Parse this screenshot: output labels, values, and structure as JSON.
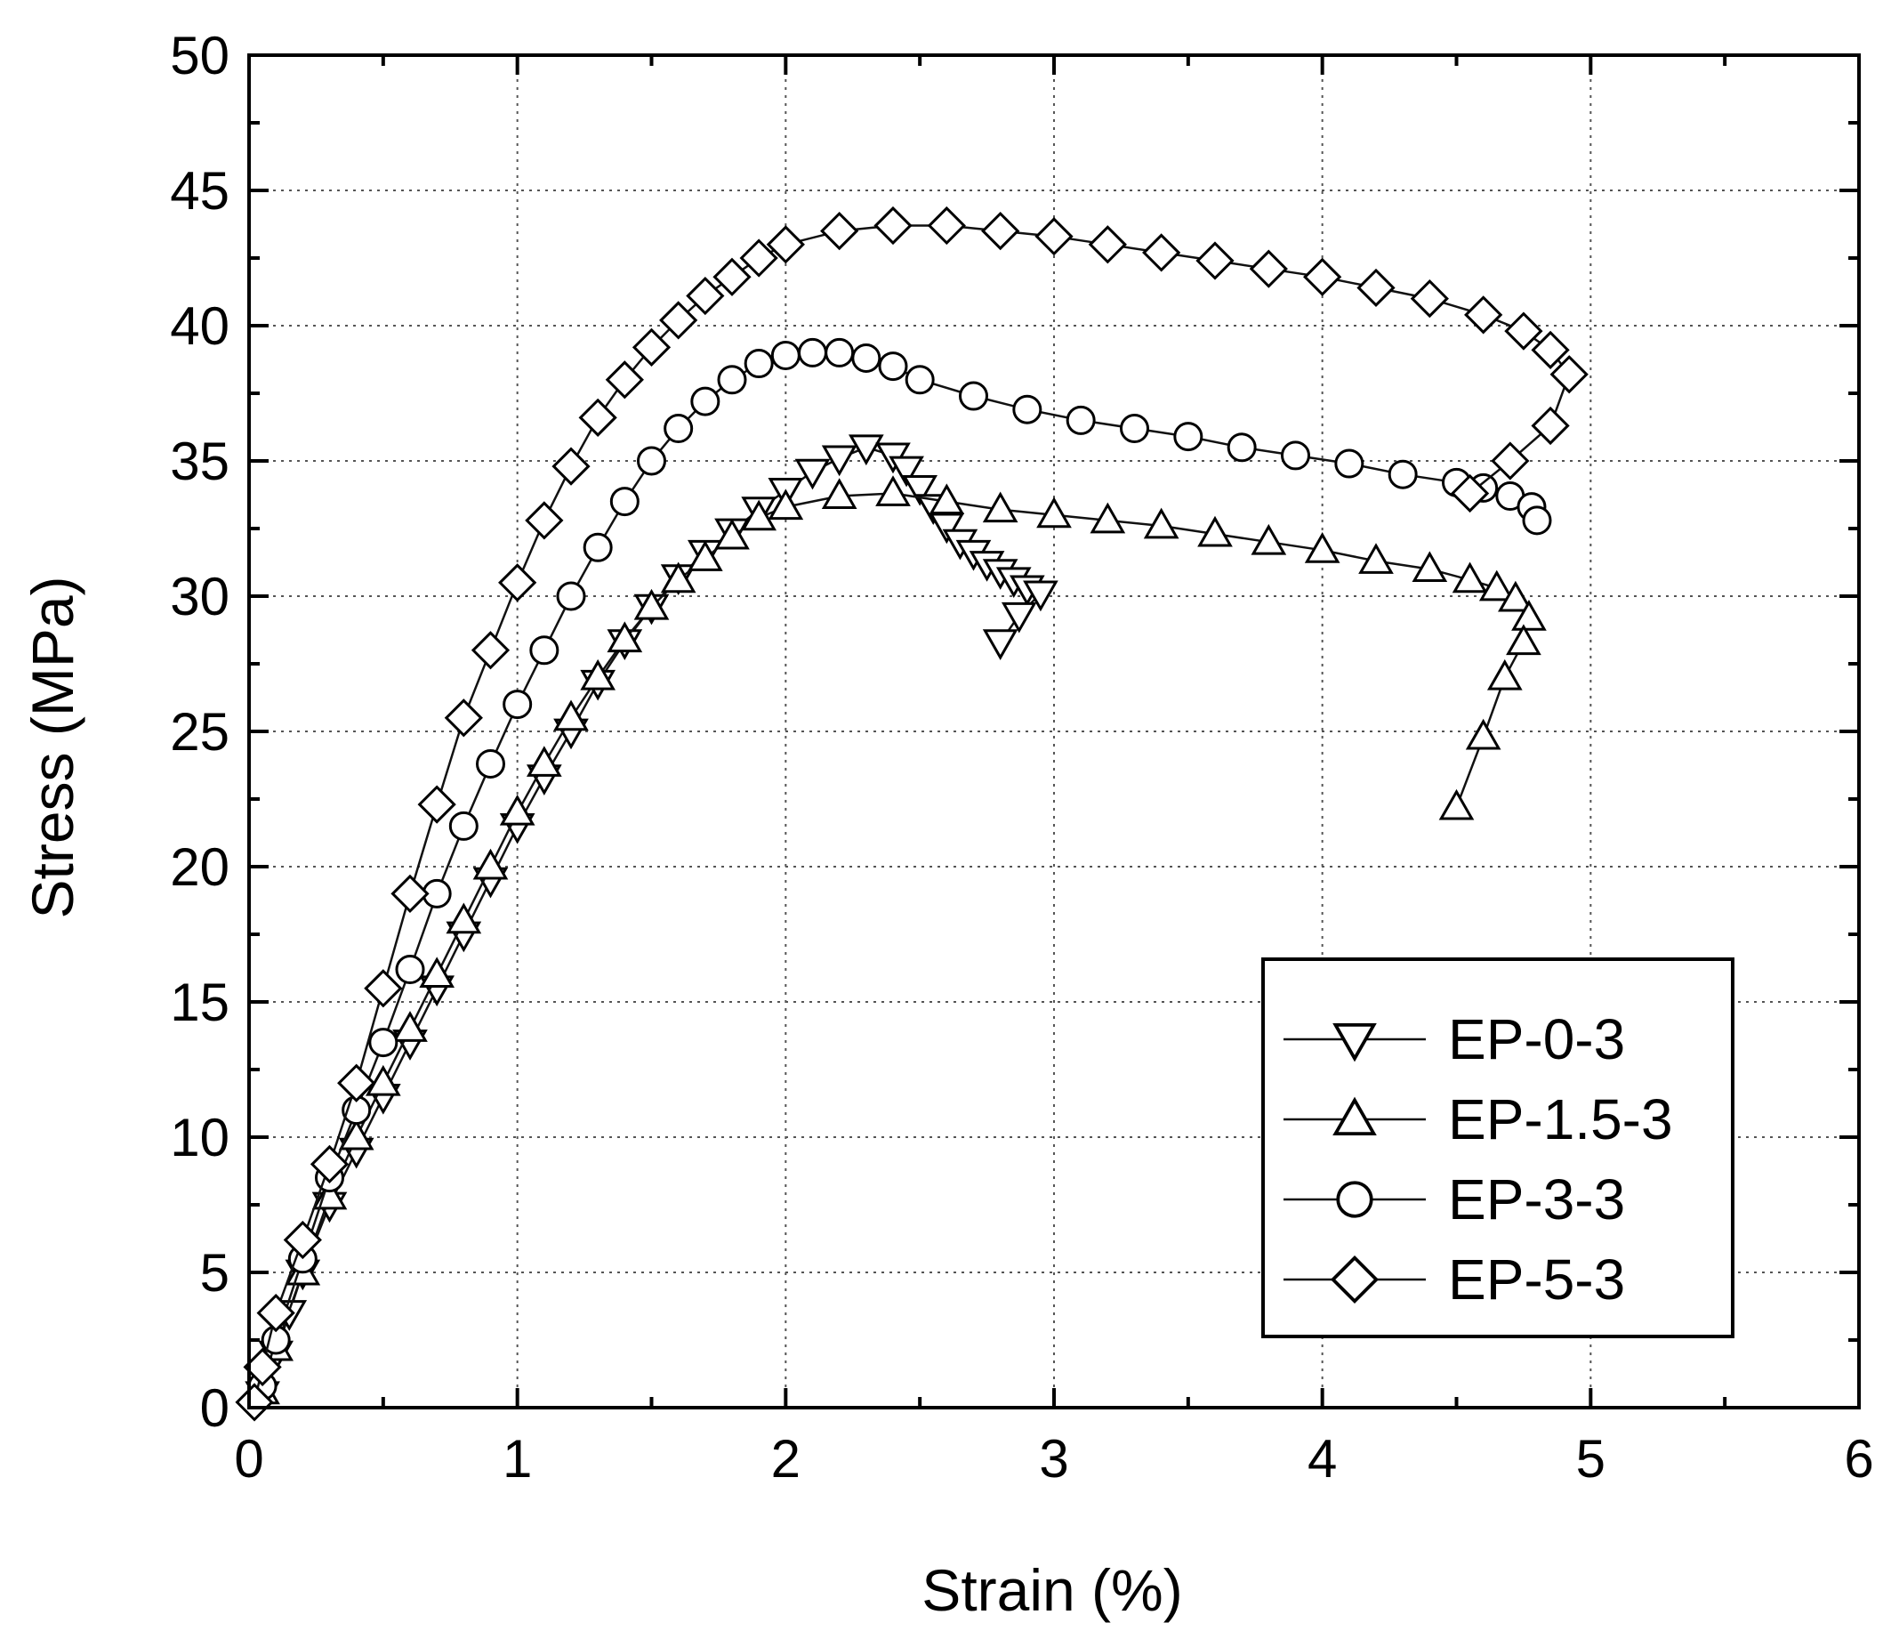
{
  "chart_data": {
    "type": "scatter",
    "title": "",
    "xlabel": "Strain (%)",
    "ylabel": "Stress (MPa)",
    "xlim": [
      0,
      6
    ],
    "ylim": [
      0,
      50
    ],
    "xticks": [
      0,
      1,
      2,
      3,
      4,
      5,
      6
    ],
    "yticks": [
      0,
      5,
      10,
      15,
      20,
      25,
      30,
      35,
      40,
      45,
      50
    ],
    "grid": true,
    "legend_position": "bottom-right",
    "series": [
      {
        "name": "EP-0-3",
        "marker": "triangle-down",
        "points": [
          [
            0.05,
            0.5
          ],
          [
            0.1,
            2.0
          ],
          [
            0.15,
            3.5
          ],
          [
            0.2,
            5.0
          ],
          [
            0.3,
            7.5
          ],
          [
            0.4,
            9.5
          ],
          [
            0.5,
            11.5
          ],
          [
            0.6,
            13.5
          ],
          [
            0.7,
            15.5
          ],
          [
            0.8,
            17.5
          ],
          [
            0.9,
            19.5
          ],
          [
            1.0,
            21.5
          ],
          [
            1.1,
            23.3
          ],
          [
            1.2,
            25.0
          ],
          [
            1.3,
            26.8
          ],
          [
            1.4,
            28.3
          ],
          [
            1.5,
            29.6
          ],
          [
            1.6,
            30.7
          ],
          [
            1.7,
            31.6
          ],
          [
            1.8,
            32.4
          ],
          [
            1.9,
            33.2
          ],
          [
            2.0,
            33.9
          ],
          [
            2.1,
            34.6
          ],
          [
            2.2,
            35.1
          ],
          [
            2.3,
            35.5
          ],
          [
            2.4,
            35.2
          ],
          [
            2.45,
            34.7
          ],
          [
            2.5,
            34.0
          ],
          [
            2.55,
            33.3
          ],
          [
            2.6,
            32.6
          ],
          [
            2.65,
            32.0
          ],
          [
            2.7,
            31.6
          ],
          [
            2.75,
            31.2
          ],
          [
            2.8,
            30.9
          ],
          [
            2.85,
            30.6
          ],
          [
            2.9,
            30.3
          ],
          [
            2.95,
            30.1
          ],
          [
            2.87,
            29.3
          ],
          [
            2.8,
            28.3
          ]
        ]
      },
      {
        "name": "EP-1.5-3",
        "marker": "triangle-up",
        "points": [
          [
            0.05,
            0.6
          ],
          [
            0.1,
            2.2
          ],
          [
            0.2,
            5.0
          ],
          [
            0.3,
            7.8
          ],
          [
            0.4,
            10.0
          ],
          [
            0.5,
            12.0
          ],
          [
            0.6,
            14.0
          ],
          [
            0.7,
            16.0
          ],
          [
            0.8,
            18.0
          ],
          [
            0.9,
            20.0
          ],
          [
            1.0,
            22.0
          ],
          [
            1.1,
            23.8
          ],
          [
            1.2,
            25.5
          ],
          [
            1.3,
            27.0
          ],
          [
            1.4,
            28.4
          ],
          [
            1.5,
            29.6
          ],
          [
            1.6,
            30.6
          ],
          [
            1.7,
            31.4
          ],
          [
            1.8,
            32.2
          ],
          [
            1.9,
            32.9
          ],
          [
            2.0,
            33.3
          ],
          [
            2.2,
            33.7
          ],
          [
            2.4,
            33.8
          ],
          [
            2.6,
            33.5
          ],
          [
            2.8,
            33.2
          ],
          [
            3.0,
            33.0
          ],
          [
            3.2,
            32.8
          ],
          [
            3.4,
            32.6
          ],
          [
            3.6,
            32.3
          ],
          [
            3.8,
            32.0
          ],
          [
            4.0,
            31.7
          ],
          [
            4.2,
            31.3
          ],
          [
            4.4,
            31.0
          ],
          [
            4.55,
            30.6
          ],
          [
            4.65,
            30.3
          ],
          [
            4.72,
            29.9
          ],
          [
            4.77,
            29.2
          ],
          [
            4.75,
            28.3
          ],
          [
            4.68,
            27.0
          ],
          [
            4.6,
            24.8
          ],
          [
            4.5,
            22.2
          ]
        ]
      },
      {
        "name": "EP-3-3",
        "marker": "circle",
        "points": [
          [
            0.05,
            0.8
          ],
          [
            0.1,
            2.5
          ],
          [
            0.2,
            5.5
          ],
          [
            0.3,
            8.5
          ],
          [
            0.4,
            11.0
          ],
          [
            0.5,
            13.5
          ],
          [
            0.6,
            16.2
          ],
          [
            0.7,
            19.0
          ],
          [
            0.8,
            21.5
          ],
          [
            0.9,
            23.8
          ],
          [
            1.0,
            26.0
          ],
          [
            1.1,
            28.0
          ],
          [
            1.2,
            30.0
          ],
          [
            1.3,
            31.8
          ],
          [
            1.4,
            33.5
          ],
          [
            1.5,
            35.0
          ],
          [
            1.6,
            36.2
          ],
          [
            1.7,
            37.2
          ],
          [
            1.8,
            38.0
          ],
          [
            1.9,
            38.6
          ],
          [
            2.0,
            38.9
          ],
          [
            2.1,
            39.0
          ],
          [
            2.2,
            39.0
          ],
          [
            2.3,
            38.8
          ],
          [
            2.4,
            38.5
          ],
          [
            2.5,
            38.0
          ],
          [
            2.7,
            37.4
          ],
          [
            2.9,
            36.9
          ],
          [
            3.1,
            36.5
          ],
          [
            3.3,
            36.2
          ],
          [
            3.5,
            35.9
          ],
          [
            3.7,
            35.5
          ],
          [
            3.9,
            35.2
          ],
          [
            4.1,
            34.9
          ],
          [
            4.3,
            34.5
          ],
          [
            4.5,
            34.2
          ],
          [
            4.6,
            34.0
          ],
          [
            4.7,
            33.7
          ],
          [
            4.78,
            33.3
          ],
          [
            4.8,
            32.8
          ]
        ]
      },
      {
        "name": "EP-5-3",
        "marker": "diamond",
        "points": [
          [
            0.02,
            0.2
          ],
          [
            0.05,
            1.5
          ],
          [
            0.1,
            3.5
          ],
          [
            0.2,
            6.2
          ],
          [
            0.3,
            9.0
          ],
          [
            0.4,
            12.0
          ],
          [
            0.5,
            15.5
          ],
          [
            0.6,
            19.0
          ],
          [
            0.7,
            22.3
          ],
          [
            0.8,
            25.5
          ],
          [
            0.9,
            28.0
          ],
          [
            1.0,
            30.5
          ],
          [
            1.1,
            32.8
          ],
          [
            1.2,
            34.8
          ],
          [
            1.3,
            36.6
          ],
          [
            1.4,
            38.0
          ],
          [
            1.5,
            39.2
          ],
          [
            1.6,
            40.2
          ],
          [
            1.7,
            41.1
          ],
          [
            1.8,
            41.8
          ],
          [
            1.9,
            42.5
          ],
          [
            2.0,
            43.0
          ],
          [
            2.2,
            43.5
          ],
          [
            2.4,
            43.7
          ],
          [
            2.6,
            43.7
          ],
          [
            2.8,
            43.5
          ],
          [
            3.0,
            43.3
          ],
          [
            3.2,
            43.0
          ],
          [
            3.4,
            42.7
          ],
          [
            3.6,
            42.4
          ],
          [
            3.8,
            42.1
          ],
          [
            4.0,
            41.8
          ],
          [
            4.2,
            41.4
          ],
          [
            4.4,
            41.0
          ],
          [
            4.6,
            40.4
          ],
          [
            4.75,
            39.8
          ],
          [
            4.85,
            39.1
          ],
          [
            4.92,
            38.2
          ],
          [
            4.85,
            36.3
          ],
          [
            4.7,
            35.0
          ],
          [
            4.55,
            33.8
          ]
        ]
      }
    ]
  }
}
